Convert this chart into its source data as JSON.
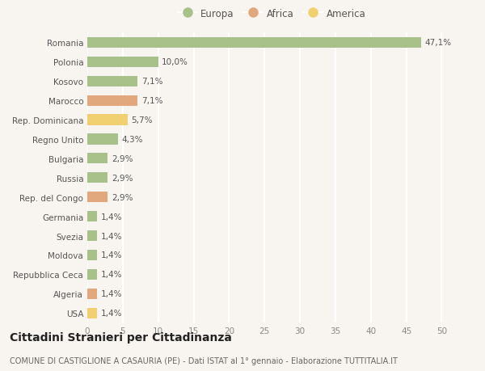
{
  "categories": [
    "Romania",
    "Polonia",
    "Kosovo",
    "Marocco",
    "Rep. Dominicana",
    "Regno Unito",
    "Bulgaria",
    "Russia",
    "Rep. del Congo",
    "Germania",
    "Svezia",
    "Moldova",
    "Repubblica Ceca",
    "Algeria",
    "USA"
  ],
  "values": [
    47.1,
    10.0,
    7.1,
    7.1,
    5.7,
    4.3,
    2.9,
    2.9,
    2.9,
    1.4,
    1.4,
    1.4,
    1.4,
    1.4,
    1.4
  ],
  "labels": [
    "47,1%",
    "10,0%",
    "7,1%",
    "7,1%",
    "5,7%",
    "4,3%",
    "2,9%",
    "2,9%",
    "2,9%",
    "1,4%",
    "1,4%",
    "1,4%",
    "1,4%",
    "1,4%",
    "1,4%"
  ],
  "continent": [
    "Europa",
    "Europa",
    "Europa",
    "Africa",
    "America",
    "Europa",
    "Europa",
    "Europa",
    "Africa",
    "Europa",
    "Europa",
    "Europa",
    "Europa",
    "Africa",
    "America"
  ],
  "colors": {
    "Europa": "#a8c08a",
    "Africa": "#e0a87c",
    "America": "#f0d070"
  },
  "xlim": [
    0,
    52
  ],
  "xticks": [
    0,
    5,
    10,
    15,
    20,
    25,
    30,
    35,
    40,
    45,
    50
  ],
  "title": "Cittadini Stranieri per Cittadinanza",
  "subtitle": "COMUNE DI CASTIGLIONE A CASAURIA (PE) - Dati ISTAT al 1° gennaio - Elaborazione TUTTITALIA.IT",
  "background_color": "#f8f5f0",
  "grid_color": "#ffffff",
  "bar_height": 0.55,
  "label_fontsize": 7.5,
  "tick_fontsize": 7.5,
  "title_fontsize": 10,
  "subtitle_fontsize": 7.0,
  "legend_fontsize": 8.5
}
